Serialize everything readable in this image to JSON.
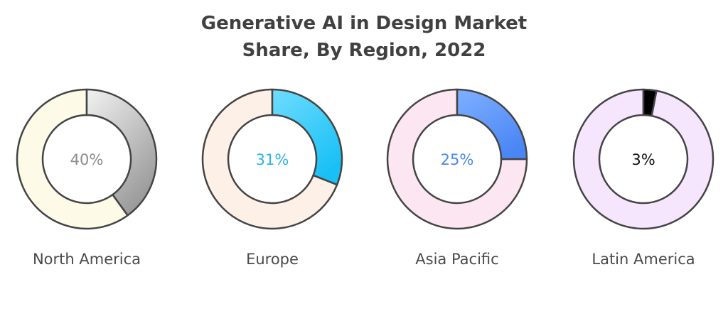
{
  "chart_data": {
    "type": "pie",
    "title_lines": [
      "Generative AI in Design Market",
      "Share, By Region, 2022"
    ],
    "series": [
      {
        "name": "North America",
        "value": 40,
        "label": "40%",
        "colors": {
          "share_start": "#f2f2f2",
          "share_end": "#9a9a9a",
          "rest": "#fdfbe8",
          "text": "#8c8c8c"
        }
      },
      {
        "name": "Europe",
        "value": 31,
        "label": "31%",
        "colors": {
          "share_start": "#6fdcff",
          "share_end": "#19c0f5",
          "rest": "#fdf0e7",
          "text": "#2bb3e6"
        }
      },
      {
        "name": "Asia Pacific",
        "value": 25,
        "label": "25%",
        "colors": {
          "share_start": "#7fb0ff",
          "share_end": "#4b86f5",
          "rest": "#fce6f1",
          "text": "#4a88ee"
        }
      },
      {
        "name": "Latin America",
        "value": 3,
        "label": "3%",
        "colors": {
          "share_start": "#000000",
          "share_end": "#000000",
          "rest": "#f6e6fd",
          "text": "#111111"
        }
      }
    ]
  }
}
